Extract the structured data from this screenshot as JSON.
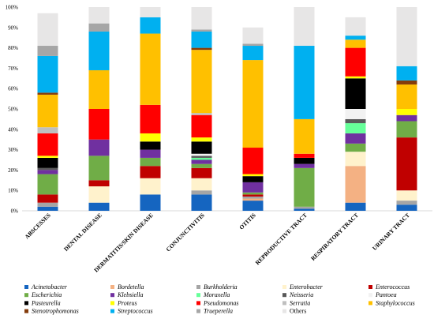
{
  "chart_data": {
    "type": "bar",
    "stacked": true,
    "title": "",
    "xlabel": "",
    "ylabel": "",
    "ylim": [
      0,
      100
    ],
    "y_ticks": [
      "0%",
      "10%",
      "20%",
      "30%",
      "40%",
      "50%",
      "60%",
      "70%",
      "80%",
      "90%",
      "100%"
    ],
    "y_tick_values": [
      0,
      10,
      20,
      30,
      40,
      50,
      60,
      70,
      80,
      90,
      100
    ],
    "grid": false,
    "legend_position": "bottom",
    "categories": [
      "ABSCESSES",
      "DENTAL DISEASE",
      "DERMATITIS/SKIN DISEASE",
      "CONJUNCTIVITIS",
      "OTITIS",
      "REPRODUCTIVE TRACT",
      "RESPIRATORY TRACT",
      "URINARY TRACT"
    ],
    "series": [
      {
        "name": "Acinetobacter",
        "italic": true,
        "color": "#1565c0",
        "values": [
          2,
          4,
          8,
          8,
          5,
          1,
          4,
          3
        ]
      },
      {
        "name": "Bordetella",
        "italic": true,
        "color": "#f4b183",
        "values": [
          0,
          0,
          0,
          0,
          1,
          0,
          18,
          0
        ]
      },
      {
        "name": "Burkholderia",
        "italic": true,
        "color": "#a5a5a5",
        "values": [
          2,
          0,
          0,
          2,
          1,
          1,
          0,
          2
        ]
      },
      {
        "name": "Enterobacter",
        "italic": true,
        "color": "#fff2cc",
        "values": [
          0,
          8,
          8,
          6,
          0,
          0,
          7,
          5
        ]
      },
      {
        "name": "Enterococcus",
        "italic": true,
        "color": "#c00000",
        "values": [
          4,
          3,
          6,
          5,
          1,
          0,
          0,
          26
        ]
      },
      {
        "name": "Escherichia",
        "italic": true,
        "color": "#70ad47",
        "values": [
          10,
          12,
          4,
          2,
          1,
          19,
          4,
          8
        ]
      },
      {
        "name": "Klebsiella",
        "italic": true,
        "color": "#7030a0",
        "values": [
          2,
          8,
          4,
          2,
          5,
          2,
          5,
          3
        ]
      },
      {
        "name": "Moraxella",
        "italic": true,
        "color": "#66ff99",
        "values": [
          0,
          0,
          0,
          1,
          0,
          0,
          5,
          0
        ]
      },
      {
        "name": "Neisseria",
        "italic": true,
        "color": "#595959",
        "values": [
          1,
          0,
          0,
          1,
          0,
          0,
          2,
          0
        ]
      },
      {
        "name": "Pantoea",
        "italic": true,
        "color": "#f2f2f2",
        "values": [
          0,
          0,
          0,
          1,
          0,
          0,
          5,
          0
        ]
      },
      {
        "name": "Pasteurella",
        "italic": true,
        "color": "#000000",
        "values": [
          5,
          0,
          4,
          6,
          3,
          3,
          15,
          0
        ]
      },
      {
        "name": "Proteus",
        "italic": true,
        "color": "#ffff00",
        "values": [
          1,
          0,
          4,
          2,
          1,
          0,
          1,
          3
        ]
      },
      {
        "name": "Pseudomonas",
        "italic": true,
        "color": "#ff0000",
        "values": [
          11,
          15,
          14,
          11,
          13,
          2,
          14,
          0
        ]
      },
      {
        "name": "Serratia",
        "italic": true,
        "color": "#bfbfbf",
        "values": [
          3,
          0,
          0,
          1,
          0,
          0,
          0,
          0
        ]
      },
      {
        "name": "Staphylococcus",
        "italic": true,
        "color": "#ffc000",
        "values": [
          16,
          19,
          35,
          31,
          43,
          17,
          4,
          12
        ]
      },
      {
        "name": "Stenotrophomonas",
        "italic": true,
        "color": "#843c0c",
        "values": [
          1,
          0,
          0,
          1,
          0,
          0,
          0,
          2
        ]
      },
      {
        "name": "Streptococcus",
        "italic": true,
        "color": "#00b0f0",
        "values": [
          18,
          19,
          8,
          8,
          7,
          36,
          2,
          7
        ]
      },
      {
        "name": "Trueperella",
        "italic": true,
        "color": "#a6a6a6",
        "values": [
          5,
          4,
          0,
          1,
          1,
          0,
          0,
          0
        ]
      },
      {
        "name": "Others",
        "italic": false,
        "color": "#e7e6e6",
        "values": [
          16,
          8,
          5,
          11,
          8,
          19,
          9,
          29
        ]
      }
    ]
  }
}
